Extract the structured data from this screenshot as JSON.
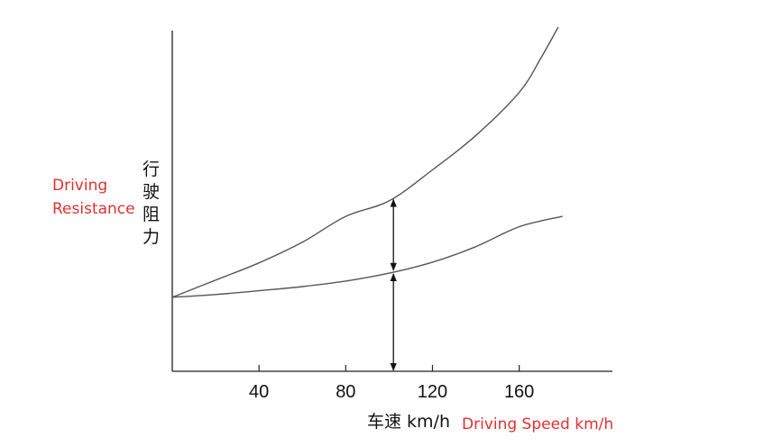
{
  "chart_data": {
    "type": "line",
    "xlabel_cn": "车速 km/h",
    "xlabel_en": "Driving Speed km/h",
    "ylabel_cn": "行驶阻力",
    "ylabel_en_lines": [
      "Driving",
      "Resistance"
    ],
    "x_ticks": [
      40,
      80,
      120,
      160
    ],
    "xlim": [
      0,
      203
    ],
    "ylim": [
      0,
      100
    ],
    "series": [
      {
        "x": [
          0,
          20,
          40,
          60,
          80,
          100,
          120,
          140,
          160,
          170,
          178
        ],
        "y": [
          21.5,
          26.5,
          31.5,
          37.5,
          45,
          49.5,
          58.5,
          68.5,
          81,
          91,
          100
        ]
      },
      {
        "x": [
          0,
          20,
          40,
          60,
          80,
          100,
          120,
          140,
          160,
          180
        ],
        "y": [
          21.5,
          22.3,
          23.4,
          24.6,
          26.2,
          28.5,
          31.7,
          36.2,
          42,
          45
        ]
      }
    ],
    "marker": {
      "x": 102,
      "arrows": [
        "between-curves",
        "lower-curve-to-axis"
      ]
    },
    "colors": {
      "axis": "#222222",
      "curves": "#555555",
      "arrows": "#111111",
      "english_labels": "#e03030"
    }
  }
}
